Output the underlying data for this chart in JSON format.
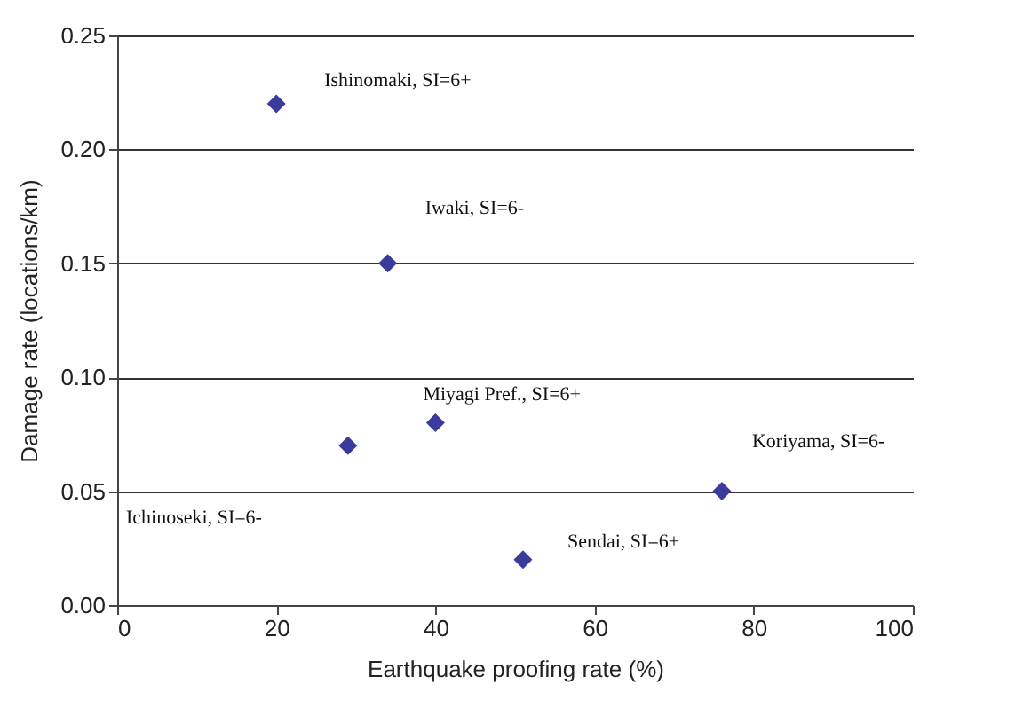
{
  "chart_data": {
    "type": "scatter",
    "xlabel": "Earthquake proofing rate (%)",
    "ylabel": "Damage rate (locations/km)",
    "x": [
      20,
      34,
      29,
      40,
      76,
      51
    ],
    "series": [
      {
        "color": "#3b3b9c",
        "values": [
          0.22,
          0.15,
          0.07,
          0.08,
          0.05,
          0.02
        ]
      }
    ],
    "xlim": [
      0,
      100
    ],
    "xticks": [
      0,
      20,
      40,
      60,
      80,
      100
    ],
    "ylim": [
      0,
      0.25
    ],
    "yticks": [
      {
        "value": 0,
        "label": "0.00"
      },
      {
        "value": 0.05,
        "label": "0.05"
      },
      {
        "value": 0.1,
        "label": "0.10"
      },
      {
        "value": 0.15,
        "label": "0.15"
      },
      {
        "value": 0.2,
        "label": "0.20"
      },
      {
        "value": 0.25,
        "label": "0.25"
      }
    ],
    "grid": "y",
    "marker": "diamond",
    "annotations": [
      {
        "text": "Ishinomaki, SI=6+",
        "x": 20,
        "y": 0.22
      },
      {
        "text": "Iwaki, SI=6-",
        "x": 34,
        "y": 0.15
      },
      "Ichinoseki, SI=6-",
      {
        "text": "Miyagi Pref., SI=6+",
        "x": 40,
        "y": 0.08
      },
      {
        "text": "Koriyama, SI=6-",
        "x": 76,
        "y": 0.05
      },
      {
        "text": "Sendai, SI=6+",
        "x": 51,
        "y": 0.02
      }
    ]
  }
}
